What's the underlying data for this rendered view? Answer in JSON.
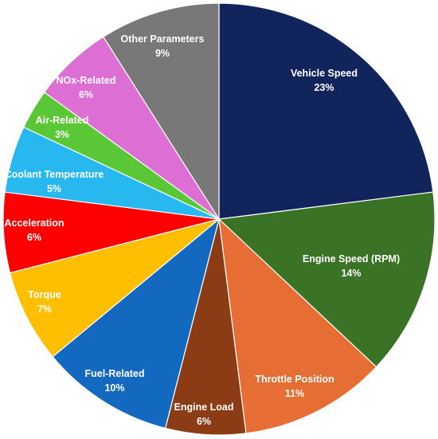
{
  "chart_data": {
    "type": "pie",
    "title": "",
    "start_angle_deg": 0,
    "direction": "clockwise",
    "legend": "none",
    "slices": [
      {
        "label": "Vehicle Speed",
        "value": 23,
        "value_label": "23%",
        "color": "#12245c"
      },
      {
        "label": "Engine Speed (RPM)",
        "value": 14,
        "value_label": "14%",
        "color": "#3a7226"
      },
      {
        "label": "Throttle Position",
        "value": 11,
        "value_label": "11%",
        "color": "#e66e35"
      },
      {
        "label": "Engine Load",
        "value": 6,
        "value_label": "6%",
        "color": "#8c3c14"
      },
      {
        "label": "Fuel-Related",
        "value": 10,
        "value_label": "10%",
        "color": "#1369c0"
      },
      {
        "label": "Torque",
        "value": 7,
        "value_label": "7%",
        "color": "#fdbf00"
      },
      {
        "label": "Acceleration",
        "value": 6,
        "value_label": "6%",
        "color": "#ff0000"
      },
      {
        "label": "Coolant Temperature",
        "value": 5,
        "value_label": "5%",
        "color": "#27b8f0"
      },
      {
        "label": "Air-Related",
        "value": 3,
        "value_label": "3%",
        "color": "#5ac836"
      },
      {
        "label": "NOx-Related",
        "value": 6,
        "value_label": "6%",
        "color": "#dd6ed3"
      },
      {
        "label": "Other Parameters",
        "value": 9,
        "value_label": "9%",
        "color": "#787878"
      }
    ]
  }
}
